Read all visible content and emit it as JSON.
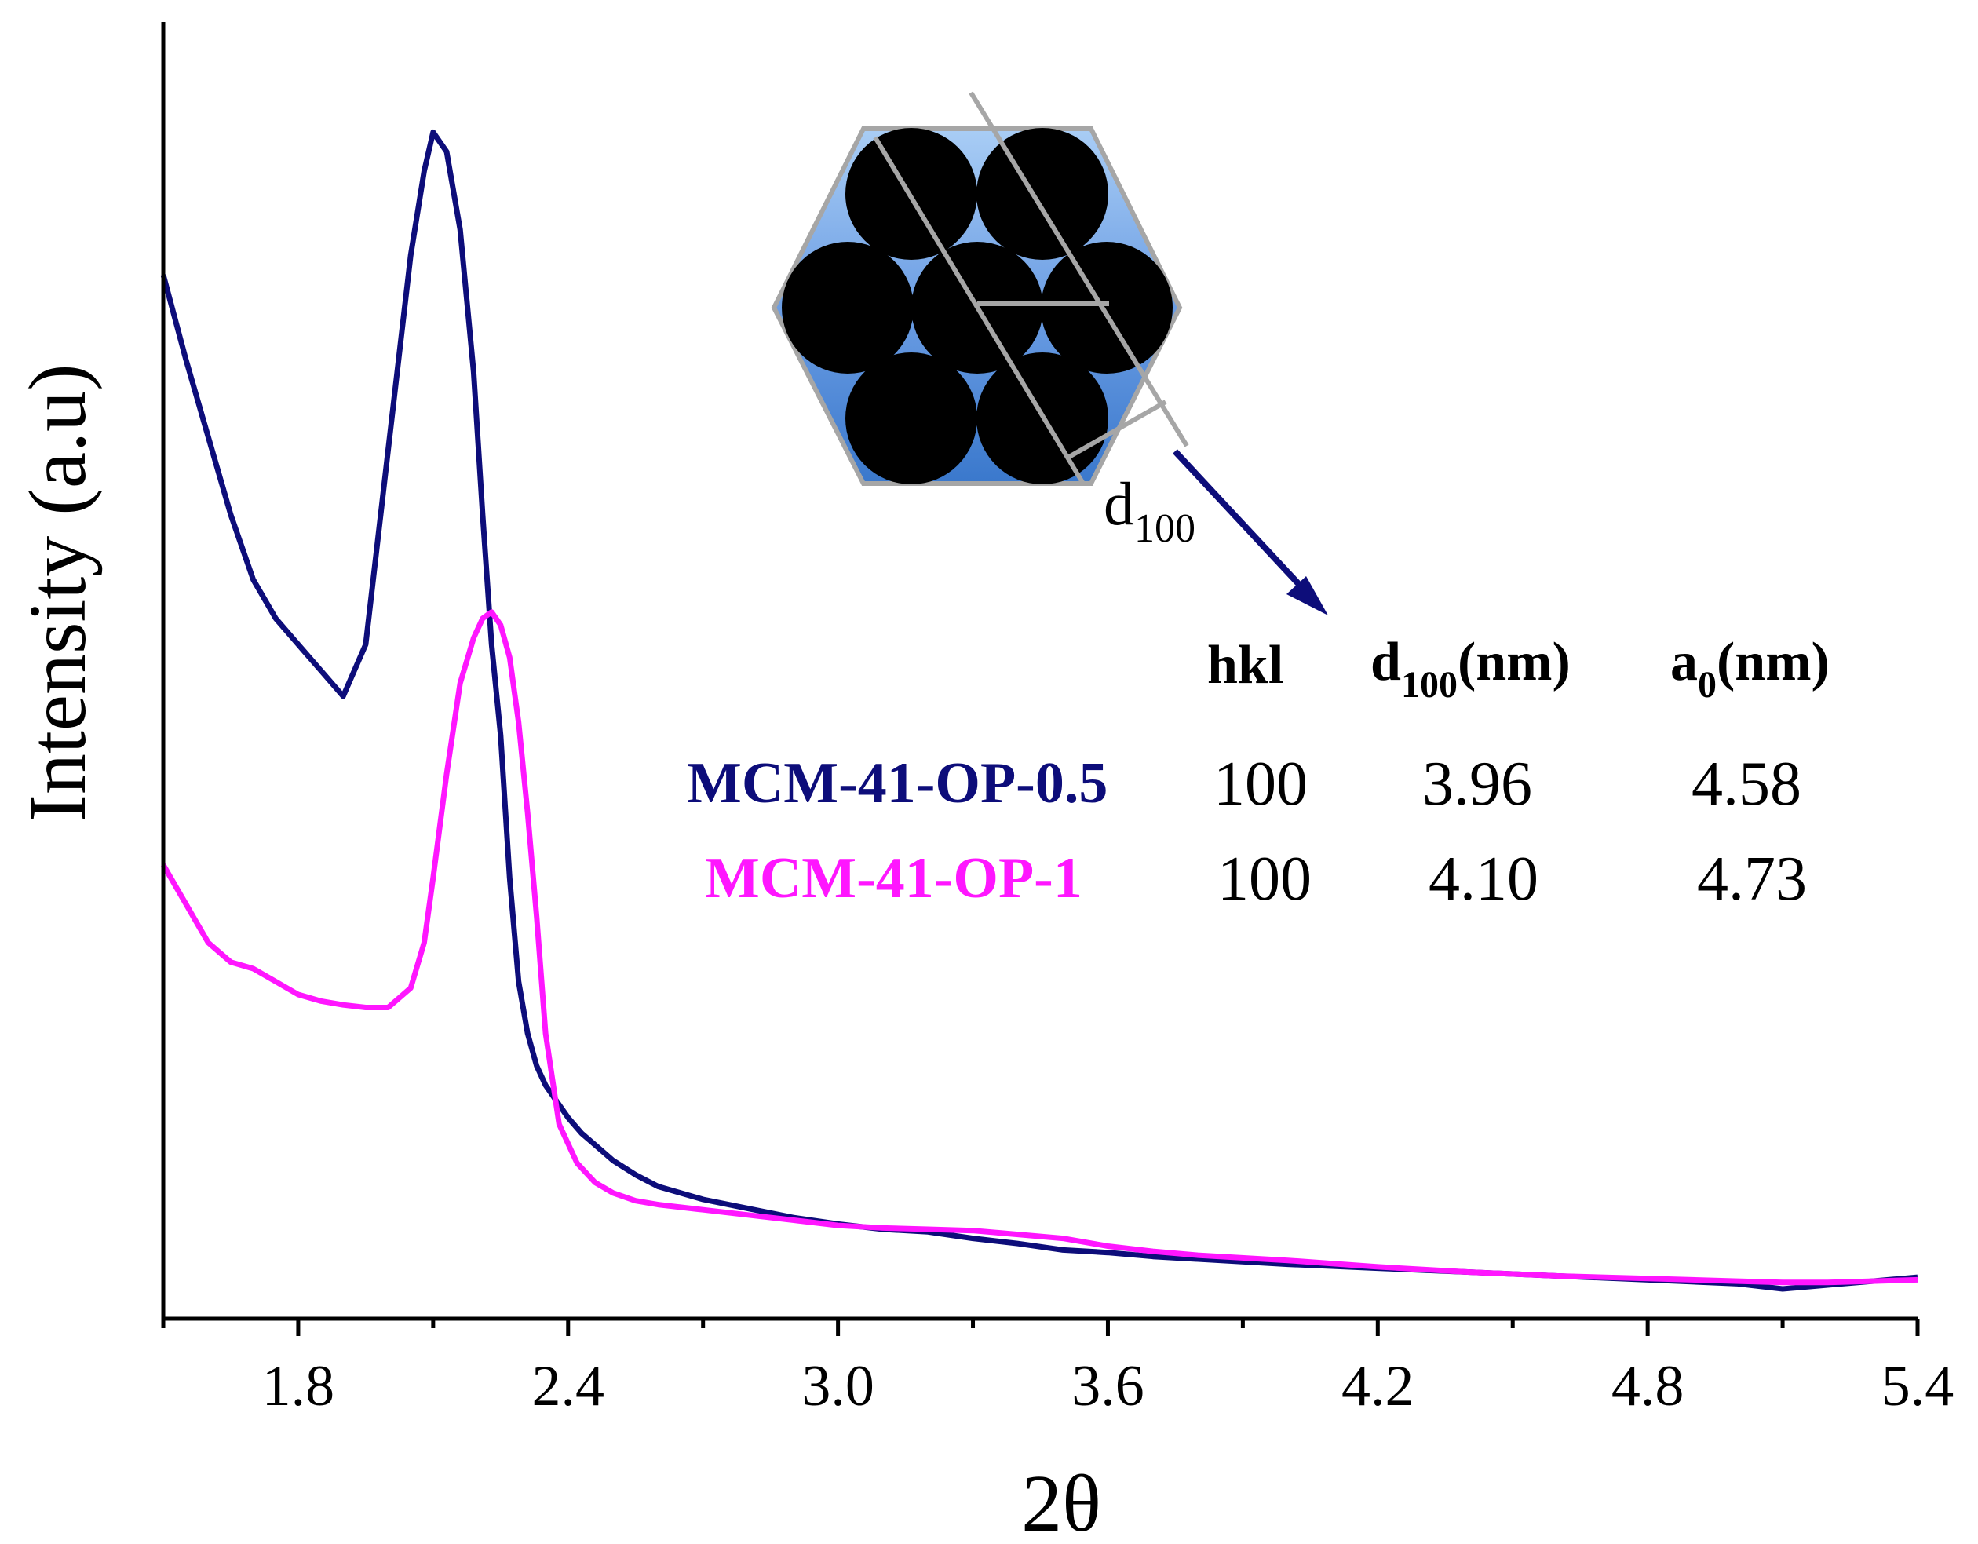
{
  "chart_data": {
    "type": "line",
    "title": "",
    "xlabel": "2θ",
    "ylabel": "Intensity (a.u)",
    "xlim": [
      1.5,
      5.4
    ],
    "ylim": [
      0,
      100
    ],
    "x_tick_labels": [
      "1.8",
      "2.4",
      "3.0",
      "3.6",
      "4.2",
      "4.8",
      "5.4"
    ],
    "x_ticks": [
      1.8,
      2.4,
      3.0,
      3.6,
      4.2,
      4.8,
      5.4
    ],
    "x_minor_ticks": [
      1.5,
      2.1,
      2.7,
      3.3,
      3.9,
      4.5,
      5.1
    ],
    "series": [
      {
        "name": "MCM-41-OP-0.5",
        "color": "#0d0d7a",
        "x": [
          1.5,
          1.55,
          1.6,
          1.65,
          1.7,
          1.75,
          1.8,
          1.85,
          1.9,
          1.95,
          2.0,
          2.05,
          2.08,
          2.1,
          2.13,
          2.16,
          2.19,
          2.21,
          2.23,
          2.25,
          2.27,
          2.29,
          2.31,
          2.33,
          2.35,
          2.37,
          2.4,
          2.43,
          2.46,
          2.5,
          2.55,
          2.6,
          2.7,
          2.8,
          2.9,
          3.0,
          3.1,
          3.2,
          3.3,
          3.4,
          3.5,
          3.6,
          3.7,
          3.8,
          4.0,
          4.2,
          4.4,
          4.6,
          4.8,
          5.0,
          5.1,
          5.2,
          5.3,
          5.4
        ],
        "y": [
          80.5,
          74,
          68,
          62,
          57,
          54,
          52,
          50,
          48,
          52,
          67,
          82,
          88.5,
          91.5,
          90,
          84,
          73,
          62,
          52,
          45,
          34,
          26,
          22,
          19.5,
          18,
          17,
          15.5,
          14.3,
          13.4,
          12.2,
          11.1,
          10.2,
          9.2,
          8.5,
          7.8,
          7.3,
          6.9,
          6.7,
          6.2,
          5.8,
          5.3,
          5.1,
          4.8,
          4.6,
          4.2,
          3.9,
          3.6,
          3.3,
          3.0,
          2.7,
          2.3,
          2.6,
          2.9,
          3.2
        ]
      },
      {
        "name": "MCM-41-OP-1",
        "color": "#ff16ff",
        "x": [
          1.5,
          1.55,
          1.6,
          1.65,
          1.7,
          1.75,
          1.8,
          1.85,
          1.9,
          1.95,
          2.0,
          2.05,
          2.08,
          2.1,
          2.13,
          2.16,
          2.19,
          2.21,
          2.23,
          2.25,
          2.27,
          2.29,
          2.31,
          2.33,
          2.35,
          2.38,
          2.42,
          2.46,
          2.5,
          2.55,
          2.6,
          2.7,
          2.8,
          2.9,
          3.0,
          3.1,
          3.2,
          3.3,
          3.4,
          3.5,
          3.6,
          3.7,
          3.8,
          4.0,
          4.2,
          4.4,
          4.6,
          4.8,
          5.0,
          5.1,
          5.2,
          5.3,
          5.4
        ],
        "y": [
          35,
          32,
          29,
          27.5,
          27,
          26,
          25,
          24.5,
          24.2,
          24,
          24,
          25.5,
          29,
          34,
          42,
          49,
          52.5,
          54,
          54.5,
          53.5,
          51,
          46,
          39,
          31,
          22,
          15,
          12,
          10.5,
          9.7,
          9.1,
          8.8,
          8.4,
          8.0,
          7.6,
          7.2,
          7.0,
          6.9,
          6.8,
          6.5,
          6.2,
          5.6,
          5.2,
          4.9,
          4.5,
          4.0,
          3.6,
          3.3,
          3.1,
          2.9,
          2.8,
          2.8,
          2.9,
          3.0
        ]
      }
    ],
    "annotations": {
      "inset_label": "d",
      "inset_label_sub": "100"
    },
    "table": {
      "headers": [
        {
          "main": "hkl",
          "sub": ""
        },
        {
          "main": "d",
          "sub": "100",
          "tail": "(nm)"
        },
        {
          "main": "a",
          "sub": "0",
          "tail": "(nm)"
        }
      ],
      "rows": [
        {
          "name": "MCM-41-OP-0.5",
          "color": "#0d0d7a",
          "hkl": "100",
          "d100": "3.96",
          "a0": "4.58"
        },
        {
          "name": "MCM-41-OP-1",
          "color": "#ff16ff",
          "hkl": "100",
          "d100": "4.10",
          "a0": "4.73"
        }
      ]
    }
  }
}
